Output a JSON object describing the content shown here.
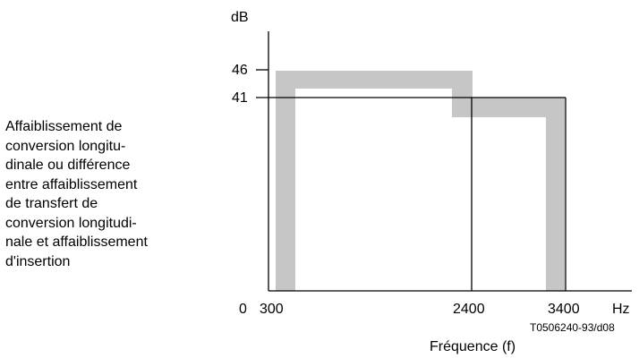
{
  "y_unit": "dB",
  "x_unit": "Hz",
  "y_ticks": [
    "46",
    "41"
  ],
  "x_ticks": [
    "0",
    "300",
    "2400",
    "3400"
  ],
  "x_title": "Fréquence (f)",
  "figure_ref": "T0506240-93/d08",
  "caption_lines": [
    "Affaiblissement de",
    "conversion longitu-",
    "dinale ou différence",
    "entre affaiblissement",
    "de transfert de",
    "conversion longitudi-",
    "nale et affaiblissement",
    "d'insertion"
  ],
  "colors": {
    "band": "#c6c6c6",
    "line": "#000000"
  }
}
